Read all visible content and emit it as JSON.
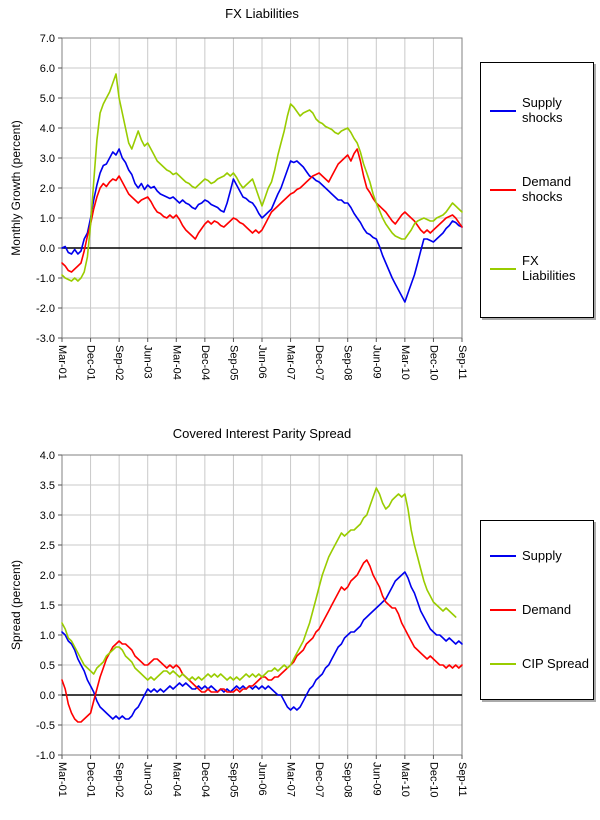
{
  "chart_data": [
    {
      "type": "line",
      "title": "FX Liabilities",
      "ylabel": "Monthly Growth (percent)",
      "ylim": [
        -3.0,
        7.0
      ],
      "y_ticks": [
        "7.0",
        "6.0",
        "5.0",
        "4.0",
        "3.0",
        "2.0",
        "1.0",
        "0.0",
        "-1.0",
        "-2.0",
        "-3.0"
      ],
      "x_ticks": [
        "Mar-01",
        "Dec-01",
        "Sep-02",
        "Jun-03",
        "Mar-04",
        "Dec-04",
        "Sep-05",
        "Jun-06",
        "Mar-07",
        "Dec-07",
        "Sep-08",
        "Jun-09",
        "Mar-10",
        "Dec-10",
        "Sep-11"
      ],
      "x_tick_positions": [
        0,
        9,
        18,
        27,
        36,
        45,
        54,
        63,
        72,
        81,
        90,
        99,
        108,
        117,
        126
      ],
      "grid": "both",
      "legend_position": "right",
      "series": [
        {
          "name": "Supply shocks",
          "color": "#0000ee",
          "values": [
            0.0,
            0.05,
            -0.15,
            -0.2,
            -0.05,
            -0.2,
            -0.1,
            0.3,
            0.5,
            1.0,
            1.6,
            2.1,
            2.5,
            2.75,
            2.8,
            3.0,
            3.2,
            3.1,
            3.3,
            3.0,
            2.85,
            2.6,
            2.45,
            2.15,
            2.0,
            2.15,
            1.95,
            2.1,
            2.0,
            2.05,
            1.9,
            1.8,
            1.75,
            1.7,
            1.65,
            1.7,
            1.6,
            1.5,
            1.6,
            1.5,
            1.45,
            1.35,
            1.3,
            1.45,
            1.5,
            1.6,
            1.55,
            1.45,
            1.4,
            1.35,
            1.25,
            1.2,
            1.5,
            1.9,
            2.3,
            2.1,
            1.9,
            1.7,
            1.65,
            1.55,
            1.5,
            1.35,
            1.15,
            1.0,
            1.1,
            1.2,
            1.3,
            1.55,
            1.8,
            2.0,
            2.3,
            2.6,
            2.9,
            2.85,
            2.9,
            2.8,
            2.7,
            2.55,
            2.4,
            2.35,
            2.25,
            2.2,
            2.1,
            2.0,
            1.9,
            1.8,
            1.7,
            1.6,
            1.6,
            1.5,
            1.5,
            1.35,
            1.15,
            1.0,
            0.85,
            0.65,
            0.5,
            0.45,
            0.35,
            0.3,
            0.05,
            -0.25,
            -0.5,
            -0.75,
            -1.0,
            -1.2,
            -1.4,
            -1.6,
            -1.8,
            -1.5,
            -1.2,
            -0.9,
            -0.5,
            -0.1,
            0.3,
            0.3,
            0.25,
            0.2,
            0.3,
            0.4,
            0.5,
            0.65,
            0.75,
            0.9,
            0.85,
            0.75,
            0.7
          ]
        },
        {
          "name": "Demand shocks",
          "color": "#ff0000",
          "values": [
            -0.5,
            -0.6,
            -0.75,
            -0.8,
            -0.7,
            -0.6,
            -0.5,
            -0.1,
            0.4,
            0.8,
            1.3,
            1.7,
            2.0,
            2.15,
            2.05,
            2.2,
            2.3,
            2.25,
            2.4,
            2.2,
            2.0,
            1.8,
            1.7,
            1.6,
            1.5,
            1.6,
            1.65,
            1.7,
            1.55,
            1.35,
            1.2,
            1.15,
            1.05,
            1.0,
            1.1,
            1.0,
            1.1,
            0.95,
            0.75,
            0.6,
            0.5,
            0.4,
            0.3,
            0.5,
            0.65,
            0.8,
            0.9,
            0.8,
            0.9,
            0.85,
            0.75,
            0.7,
            0.8,
            0.9,
            1.0,
            0.95,
            0.85,
            0.8,
            0.7,
            0.6,
            0.5,
            0.6,
            0.5,
            0.6,
            0.8,
            1.0,
            1.2,
            1.3,
            1.4,
            1.5,
            1.6,
            1.7,
            1.8,
            1.85,
            1.95,
            2.0,
            2.1,
            2.2,
            2.3,
            2.4,
            2.45,
            2.5,
            2.4,
            2.3,
            2.2,
            2.4,
            2.6,
            2.8,
            2.9,
            3.0,
            3.1,
            2.9,
            3.15,
            3.3,
            2.9,
            2.4,
            2.0,
            1.85,
            1.65,
            1.5,
            1.4,
            1.3,
            1.2,
            1.05,
            0.9,
            0.8,
            0.95,
            1.1,
            1.2,
            1.1,
            1.0,
            0.9,
            0.75,
            0.6,
            0.5,
            0.6,
            0.5,
            0.6,
            0.7,
            0.8,
            0.9,
            1.0,
            1.05,
            1.1,
            1.0,
            0.85,
            0.7
          ]
        },
        {
          "name": "FX Liabilities",
          "color": "#99cc00",
          "values": [
            -0.9,
            -1.0,
            -1.05,
            -1.1,
            -1.0,
            -1.1,
            -1.0,
            -0.8,
            -0.3,
            0.8,
            2.2,
            3.6,
            4.5,
            4.8,
            5.0,
            5.2,
            5.5,
            5.8,
            5.0,
            4.5,
            4.0,
            3.5,
            3.3,
            3.6,
            3.9,
            3.6,
            3.4,
            3.5,
            3.3,
            3.1,
            2.9,
            2.8,
            2.7,
            2.6,
            2.55,
            2.45,
            2.5,
            2.4,
            2.3,
            2.2,
            2.15,
            2.05,
            2.0,
            2.1,
            2.2,
            2.3,
            2.25,
            2.15,
            2.2,
            2.3,
            2.35,
            2.4,
            2.5,
            2.4,
            2.5,
            2.35,
            2.15,
            2.0,
            2.1,
            2.2,
            2.3,
            2.0,
            1.7,
            1.4,
            1.7,
            2.0,
            2.2,
            2.6,
            3.1,
            3.5,
            3.9,
            4.4,
            4.8,
            4.7,
            4.55,
            4.4,
            4.5,
            4.55,
            4.6,
            4.5,
            4.3,
            4.2,
            4.15,
            4.05,
            4.0,
            3.95,
            3.85,
            3.8,
            3.9,
            3.95,
            4.0,
            3.85,
            3.65,
            3.5,
            3.2,
            2.8,
            2.5,
            2.2,
            1.8,
            1.5,
            1.25,
            1.0,
            0.8,
            0.65,
            0.5,
            0.4,
            0.35,
            0.3,
            0.3,
            0.45,
            0.6,
            0.8,
            0.9,
            0.95,
            1.0,
            0.95,
            0.9,
            0.9,
            1.0,
            1.05,
            1.1,
            1.2,
            1.35,
            1.5,
            1.4,
            1.3,
            1.2
          ]
        }
      ]
    },
    {
      "type": "line",
      "title": "Covered Interest Parity Spread",
      "ylabel": "Spread (percent)",
      "ylim": [
        -1.0,
        4.0
      ],
      "y_ticks": [
        "4.0",
        "3.5",
        "3.0",
        "2.5",
        "2.0",
        "1.5",
        "1.0",
        "0.5",
        "0.0",
        "-0.5",
        "-1.0"
      ],
      "x_ticks": [
        "Mar-01",
        "Dec-01",
        "Sep-02",
        "Jun-03",
        "Mar-04",
        "Dec-04",
        "Sep-05",
        "Jun-06",
        "Mar-07",
        "Dec-07",
        "Sep-08",
        "Jun-09",
        "Mar-10",
        "Dec-10",
        "Sep-11"
      ],
      "x_tick_positions": [
        0,
        9,
        18,
        27,
        36,
        45,
        54,
        63,
        72,
        81,
        90,
        99,
        108,
        117,
        126
      ],
      "grid": "both",
      "legend_position": "right",
      "series": [
        {
          "name": "Supply",
          "color": "#0000ee",
          "values": [
            1.05,
            1.0,
            0.9,
            0.85,
            0.75,
            0.6,
            0.5,
            0.4,
            0.25,
            0.15,
            0.05,
            -0.1,
            -0.2,
            -0.25,
            -0.3,
            -0.35,
            -0.4,
            -0.35,
            -0.4,
            -0.35,
            -0.4,
            -0.4,
            -0.35,
            -0.25,
            -0.2,
            -0.1,
            0.0,
            0.1,
            0.05,
            0.1,
            0.05,
            0.1,
            0.05,
            0.1,
            0.15,
            0.1,
            0.15,
            0.2,
            0.15,
            0.2,
            0.15,
            0.1,
            0.1,
            0.15,
            0.1,
            0.15,
            0.1,
            0.15,
            0.1,
            0.05,
            0.1,
            0.05,
            0.1,
            0.05,
            0.1,
            0.15,
            0.1,
            0.15,
            0.1,
            0.15,
            0.1,
            0.15,
            0.1,
            0.15,
            0.1,
            0.15,
            0.1,
            0.05,
            0.0,
            0.0,
            -0.1,
            -0.2,
            -0.25,
            -0.2,
            -0.25,
            -0.2,
            -0.1,
            0.0,
            0.1,
            0.15,
            0.25,
            0.3,
            0.35,
            0.45,
            0.5,
            0.6,
            0.7,
            0.8,
            0.85,
            0.95,
            1.0,
            1.05,
            1.05,
            1.1,
            1.15,
            1.25,
            1.3,
            1.35,
            1.4,
            1.45,
            1.5,
            1.55,
            1.6,
            1.7,
            1.8,
            1.9,
            1.95,
            2.0,
            2.05,
            1.95,
            1.8,
            1.7,
            1.55,
            1.4,
            1.3,
            1.2,
            1.1,
            1.05,
            1.0,
            1.0,
            0.95,
            0.9,
            0.95,
            0.9,
            0.85,
            0.9,
            0.85
          ]
        },
        {
          "name": "Demand",
          "color": "#ff0000",
          "values": [
            0.25,
            0.1,
            -0.15,
            -0.3,
            -0.4,
            -0.45,
            -0.45,
            -0.4,
            -0.35,
            -0.3,
            -0.1,
            0.1,
            0.3,
            0.45,
            0.6,
            0.7,
            0.8,
            0.85,
            0.9,
            0.85,
            0.85,
            0.8,
            0.75,
            0.65,
            0.6,
            0.55,
            0.5,
            0.5,
            0.55,
            0.6,
            0.6,
            0.55,
            0.5,
            0.45,
            0.5,
            0.45,
            0.5,
            0.45,
            0.35,
            0.3,
            0.25,
            0.2,
            0.15,
            0.1,
            0.05,
            0.05,
            0.1,
            0.05,
            0.05,
            0.05,
            0.1,
            0.1,
            0.05,
            0.05,
            0.05,
            0.1,
            0.05,
            0.1,
            0.1,
            0.15,
            0.15,
            0.2,
            0.25,
            0.3,
            0.3,
            0.25,
            0.25,
            0.3,
            0.3,
            0.35,
            0.4,
            0.45,
            0.5,
            0.55,
            0.65,
            0.7,
            0.75,
            0.85,
            0.9,
            0.95,
            1.05,
            1.1,
            1.2,
            1.3,
            1.4,
            1.5,
            1.6,
            1.7,
            1.8,
            1.75,
            1.8,
            1.9,
            1.95,
            2.0,
            2.1,
            2.2,
            2.25,
            2.15,
            2.0,
            1.9,
            1.8,
            1.65,
            1.55,
            1.5,
            1.45,
            1.45,
            1.35,
            1.2,
            1.1,
            1.0,
            0.9,
            0.8,
            0.75,
            0.7,
            0.65,
            0.6,
            0.65,
            0.6,
            0.55,
            0.5,
            0.5,
            0.45,
            0.5,
            0.45,
            0.5,
            0.45,
            0.5
          ]
        },
        {
          "name": "CIP Spread",
          "color": "#99cc00",
          "values": [
            1.2,
            1.1,
            0.95,
            0.9,
            0.8,
            0.7,
            0.6,
            0.5,
            0.45,
            0.4,
            0.35,
            0.45,
            0.5,
            0.55,
            0.65,
            0.7,
            0.75,
            0.8,
            0.8,
            0.75,
            0.65,
            0.6,
            0.55,
            0.45,
            0.4,
            0.35,
            0.3,
            0.25,
            0.3,
            0.25,
            0.3,
            0.35,
            0.4,
            0.4,
            0.35,
            0.4,
            0.35,
            0.3,
            0.35,
            0.3,
            0.25,
            0.3,
            0.25,
            0.3,
            0.25,
            0.3,
            0.35,
            0.3,
            0.35,
            0.3,
            0.35,
            0.3,
            0.25,
            0.3,
            0.25,
            0.3,
            0.25,
            0.3,
            0.35,
            0.3,
            0.35,
            0.3,
            0.35,
            0.3,
            0.35,
            0.4,
            0.4,
            0.45,
            0.4,
            0.45,
            0.5,
            0.45,
            0.5,
            0.6,
            0.7,
            0.8,
            0.9,
            1.05,
            1.2,
            1.4,
            1.6,
            1.8,
            2.0,
            2.15,
            2.3,
            2.4,
            2.5,
            2.6,
            2.7,
            2.65,
            2.7,
            2.75,
            2.75,
            2.8,
            2.85,
            2.95,
            3.0,
            3.15,
            3.3,
            3.45,
            3.35,
            3.2,
            3.1,
            3.15,
            3.25,
            3.3,
            3.35,
            3.3,
            3.35,
            3.1,
            2.75,
            2.5,
            2.3,
            2.1,
            1.9,
            1.75,
            1.65,
            1.55,
            1.5,
            1.45,
            1.4,
            1.45,
            1.4,
            1.35,
            1.3
          ]
        }
      ]
    }
  ]
}
